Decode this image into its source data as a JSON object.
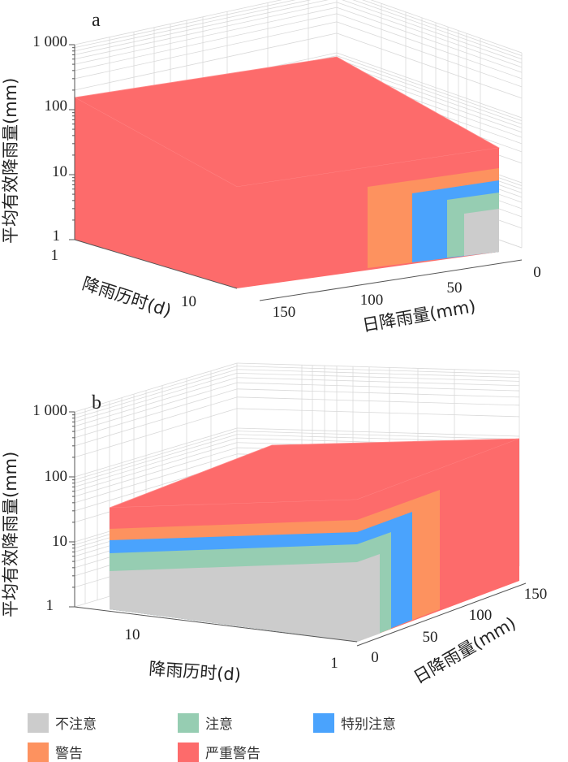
{
  "chart_data": [
    {
      "type": "3d-surface-regions",
      "panel": "a",
      "title": "a",
      "zlabel": "平均有效降雨量(mm)",
      "ylabel": "降雨历时(d)",
      "xlabel": "日降雨量(mm)",
      "z_scale": "log",
      "zlim": [
        1,
        1000
      ],
      "z_ticks": [
        "1",
        "10",
        "100",
        "1 000"
      ],
      "y_ticks": [
        "1",
        "10"
      ],
      "x_ticks": [
        "0",
        "50",
        "100",
        "150"
      ],
      "regions": [
        {
          "name": "不注意",
          "x_max": 25,
          "z_max": 2.6
        },
        {
          "name": "注意",
          "x_max": 40,
          "z_max": 4.5
        },
        {
          "name": "特别注意",
          "x_max": 60,
          "z_max": 7.5
        },
        {
          "name": "警告",
          "x_max": 90,
          "z_max": 11
        },
        {
          "name": "严重警告",
          "x_max": 150,
          "z_max_at_front": 20,
          "z_max_at_duration_1": 150
        }
      ]
    },
    {
      "type": "3d-surface-regions",
      "panel": "b",
      "title": "b",
      "zlabel": "平均有效降雨量(mm)",
      "ylabel": "降雨历时(d)",
      "xlabel": "日降雨量(mm)",
      "z_scale": "log",
      "zlim": [
        1,
        1000
      ],
      "z_ticks": [
        "1",
        "10",
        "100",
        "1 000"
      ],
      "y_ticks": [
        "10",
        "1"
      ],
      "x_ticks": [
        "0",
        "50",
        "100",
        "150"
      ],
      "regions": [
        {
          "name": "不注意",
          "x_max": 10,
          "z_max_front": 3.5
        },
        {
          "name": "注意",
          "x_max": 25,
          "z_max_front": 6
        },
        {
          "name": "特别注意",
          "x_max": 45,
          "z_max_front": 10
        },
        {
          "name": "警告",
          "x_max": 80,
          "z_max_front": 15
        },
        {
          "name": "严重警告",
          "x_max": 150,
          "z_max_front": 30,
          "z_max_back": 300
        }
      ]
    }
  ],
  "legend": [
    {
      "label": "不注意",
      "color": "#cccccc"
    },
    {
      "label": "注意",
      "color": "#96cdb2"
    },
    {
      "label": "特别注意",
      "color": "#4aa3fd"
    },
    {
      "label": "警告",
      "color": "#fd925f"
    },
    {
      "label": "严重警告",
      "color": "#fd6b6b"
    }
  ]
}
